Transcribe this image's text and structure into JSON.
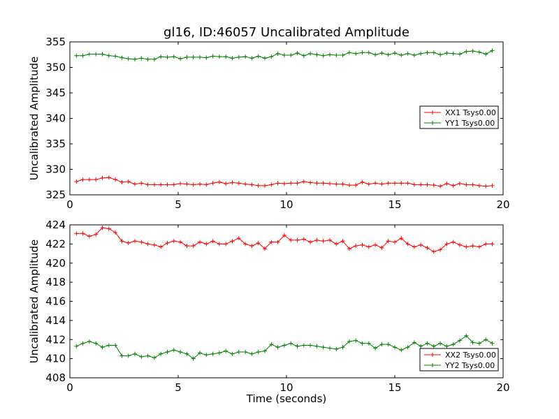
{
  "chart_data": [
    {
      "type": "line",
      "title": "gl16, ID:46057 Uncalibrated Amplitude",
      "xlabel": "",
      "ylabel": "Uncalibrated Amplitude",
      "xlim": [
        0,
        20
      ],
      "ylim": [
        325,
        355
      ],
      "xticks": [
        "0",
        "5",
        "10",
        "15",
        "20"
      ],
      "yticks": [
        "325",
        "330",
        "335",
        "340",
        "345",
        "350",
        "355"
      ],
      "xtick_values": [
        0,
        5,
        10,
        15,
        20
      ],
      "ytick_values": [
        325,
        330,
        335,
        340,
        345,
        350,
        355
      ],
      "grid": false,
      "legend_position": "center-right",
      "marker": "+",
      "series": [
        {
          "name": "XX1 Tsys0.00",
          "color": "#ff0000",
          "x": [
            0.3,
            0.6,
            0.9,
            1.2,
            1.5,
            1.8,
            2.1,
            2.4,
            2.7,
            3.0,
            3.3,
            3.6,
            3.9,
            4.2,
            4.5,
            4.8,
            5.1,
            5.4,
            5.7,
            6.0,
            6.3,
            6.6,
            6.9,
            7.2,
            7.5,
            7.8,
            8.1,
            8.4,
            8.7,
            9.0,
            9.3,
            9.6,
            9.9,
            10.2,
            10.5,
            10.8,
            11.1,
            11.4,
            11.7,
            12.0,
            12.3,
            12.6,
            12.9,
            13.2,
            13.5,
            13.8,
            14.1,
            14.4,
            14.7,
            15.0,
            15.3,
            15.6,
            15.9,
            16.2,
            16.5,
            16.8,
            17.1,
            17.4,
            17.7,
            18.0,
            18.3,
            18.6,
            18.9,
            19.2,
            19.5
          ],
          "y": [
            327.6,
            328.0,
            328.0,
            328.0,
            328.3,
            328.4,
            328.0,
            327.5,
            327.6,
            327.1,
            327.3,
            327.0,
            327.0,
            327.0,
            327.0,
            327.0,
            327.2,
            327.1,
            327.0,
            327.1,
            327.0,
            327.3,
            327.5,
            327.2,
            327.4,
            327.3,
            327.1,
            327.0,
            326.8,
            326.8,
            327.0,
            327.3,
            327.2,
            327.3,
            327.3,
            327.6,
            327.4,
            327.3,
            327.3,
            327.2,
            327.1,
            327.1,
            326.9,
            326.9,
            327.5,
            327.1,
            327.3,
            327.1,
            327.3,
            327.3,
            327.3,
            327.3,
            327.0,
            327.0,
            327.0,
            326.9,
            326.7,
            327.2,
            326.8,
            327.2,
            327.0,
            327.0,
            326.8,
            326.7,
            326.8
          ]
        },
        {
          "name": "YY1 Tsys0.00",
          "color": "#008000",
          "x": [
            0.3,
            0.6,
            0.9,
            1.2,
            1.5,
            1.8,
            2.1,
            2.4,
            2.7,
            3.0,
            3.3,
            3.6,
            3.9,
            4.2,
            4.5,
            4.8,
            5.1,
            5.4,
            5.7,
            6.0,
            6.3,
            6.6,
            6.9,
            7.2,
            7.5,
            7.8,
            8.1,
            8.4,
            8.7,
            9.0,
            9.3,
            9.6,
            9.9,
            10.2,
            10.5,
            10.8,
            11.1,
            11.4,
            11.7,
            12.0,
            12.3,
            12.6,
            12.9,
            13.2,
            13.5,
            13.8,
            14.1,
            14.4,
            14.7,
            15.0,
            15.3,
            15.6,
            15.9,
            16.2,
            16.5,
            16.8,
            17.1,
            17.4,
            17.7,
            18.0,
            18.3,
            18.6,
            18.9,
            19.2,
            19.5
          ],
          "y": [
            352.3,
            352.3,
            352.6,
            352.6,
            352.6,
            352.3,
            352.2,
            351.9,
            351.7,
            351.6,
            351.8,
            351.6,
            351.6,
            352.1,
            352.0,
            352.1,
            351.7,
            352.0,
            352.0,
            352.0,
            351.9,
            352.2,
            352.1,
            352.1,
            351.8,
            352.0,
            352.1,
            351.8,
            352.2,
            351.8,
            352.1,
            352.7,
            352.4,
            352.4,
            352.8,
            352.3,
            352.7,
            352.5,
            352.3,
            352.5,
            352.4,
            352.4,
            352.9,
            352.7,
            352.9,
            352.9,
            352.5,
            352.8,
            352.5,
            352.8,
            352.4,
            352.7,
            352.4,
            352.7,
            352.9,
            352.9,
            352.5,
            352.8,
            352.7,
            352.6,
            353.1,
            353.2,
            353.0,
            352.6,
            353.3
          ]
        }
      ]
    },
    {
      "type": "line",
      "title": "",
      "xlabel": "Time (seconds)",
      "ylabel": "Uncalibrated Amplitude",
      "xlim": [
        0,
        20
      ],
      "ylim": [
        408,
        424
      ],
      "xticks": [
        "0",
        "5",
        "10",
        "15",
        "20"
      ],
      "yticks": [
        "408",
        "410",
        "412",
        "414",
        "416",
        "418",
        "420",
        "422",
        "424"
      ],
      "xtick_values": [
        0,
        5,
        10,
        15,
        20
      ],
      "ytick_values": [
        408,
        410,
        412,
        414,
        416,
        418,
        420,
        422,
        424
      ],
      "grid": false,
      "legend_position": "lower-right",
      "marker": "+",
      "series": [
        {
          "name": "XX2 Tsys0.00",
          "color": "#ff0000",
          "x": [
            0.3,
            0.6,
            0.9,
            1.2,
            1.5,
            1.8,
            2.1,
            2.4,
            2.7,
            3.0,
            3.3,
            3.6,
            3.9,
            4.2,
            4.5,
            4.8,
            5.1,
            5.4,
            5.7,
            6.0,
            6.3,
            6.6,
            6.9,
            7.2,
            7.5,
            7.8,
            8.1,
            8.4,
            8.7,
            9.0,
            9.3,
            9.6,
            9.9,
            10.2,
            10.5,
            10.8,
            11.1,
            11.4,
            11.7,
            12.0,
            12.3,
            12.6,
            12.9,
            13.2,
            13.5,
            13.8,
            14.1,
            14.4,
            14.7,
            15.0,
            15.3,
            15.6,
            15.9,
            16.2,
            16.5,
            16.8,
            17.1,
            17.4,
            17.7,
            18.0,
            18.3,
            18.6,
            18.9,
            19.2,
            19.5
          ],
          "y": [
            423.1,
            423.1,
            422.8,
            423.0,
            423.7,
            423.6,
            423.2,
            422.3,
            422.1,
            422.3,
            422.2,
            422.0,
            421.9,
            421.7,
            422.1,
            422.3,
            422.2,
            421.8,
            421.8,
            422.2,
            422.0,
            422.3,
            422.0,
            422.0,
            422.3,
            422.6,
            422.0,
            421.8,
            422.1,
            421.5,
            422.2,
            422.2,
            422.9,
            422.4,
            422.4,
            422.5,
            422.2,
            422.4,
            422.3,
            422.4,
            422.0,
            422.3,
            421.5,
            421.8,
            421.9,
            421.7,
            421.9,
            421.6,
            422.3,
            422.2,
            422.6,
            422.0,
            421.7,
            421.9,
            421.6,
            421.2,
            421.4,
            422.0,
            422.2,
            421.9,
            421.7,
            421.8,
            421.7,
            422.0,
            422.0
          ]
        },
        {
          "name": "YY2 Tsys0.00",
          "color": "#008000",
          "x": [
            0.3,
            0.6,
            0.9,
            1.2,
            1.5,
            1.8,
            2.1,
            2.4,
            2.7,
            3.0,
            3.3,
            3.6,
            3.9,
            4.2,
            4.5,
            4.8,
            5.1,
            5.4,
            5.7,
            6.0,
            6.3,
            6.6,
            6.9,
            7.2,
            7.5,
            7.8,
            8.1,
            8.4,
            8.7,
            9.0,
            9.3,
            9.6,
            9.9,
            10.2,
            10.5,
            10.8,
            11.1,
            11.4,
            11.7,
            12.0,
            12.3,
            12.6,
            12.9,
            13.2,
            13.5,
            13.8,
            14.1,
            14.4,
            14.7,
            15.0,
            15.3,
            15.6,
            15.9,
            16.2,
            16.5,
            16.8,
            17.1,
            17.4,
            17.7,
            18.0,
            18.3,
            18.6,
            18.9,
            19.2,
            19.5
          ],
          "y": [
            411.3,
            411.6,
            411.8,
            411.6,
            411.2,
            411.4,
            411.4,
            410.3,
            410.3,
            410.5,
            410.2,
            410.3,
            410.1,
            410.5,
            410.7,
            410.9,
            410.7,
            410.5,
            410.0,
            410.6,
            410.4,
            410.5,
            410.6,
            410.8,
            410.5,
            410.7,
            410.7,
            410.5,
            410.7,
            410.8,
            411.5,
            411.2,
            411.4,
            411.6,
            411.3,
            411.4,
            411.4,
            411.3,
            411.2,
            411.1,
            411.0,
            411.2,
            411.8,
            411.9,
            411.6,
            411.6,
            411.1,
            411.5,
            411.5,
            411.2,
            410.9,
            411.2,
            411.7,
            411.3,
            411.6,
            411.3,
            411.6,
            411.3,
            411.5,
            411.9,
            412.4,
            411.7,
            411.6,
            412.0,
            411.6
          ]
        }
      ]
    }
  ]
}
